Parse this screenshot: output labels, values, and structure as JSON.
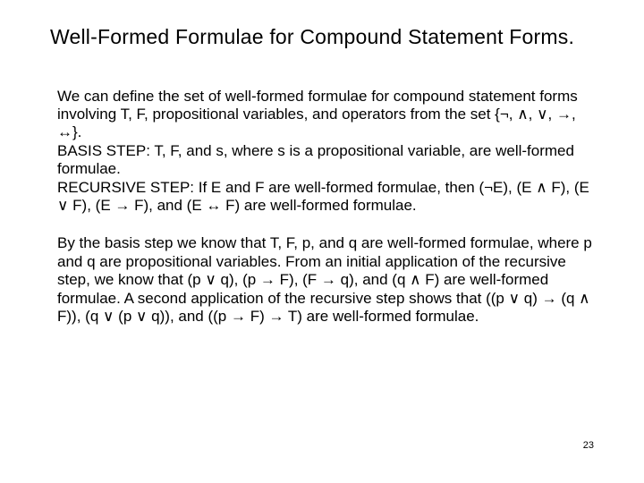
{
  "title": "Well-Formed Formulae for Compound Statement Forms.",
  "para1": "We can define the set of well-formed formulae for compound statement forms involving T, F, propositional variables, and operators from the set {¬, ∧, ∨, →, ↔}.\nBASIS STEP: T, F, and s, where s is a propositional variable, are well-formed formulae.\nRECURSIVE STEP: If E and F are well-formed formulae, then (¬E), (E ∧ F), (E ∨ F), (E → F), and (E ↔ F) are well-formed formulae.",
  "para2": "By the basis step we know that T, F, p, and q are well-formed formulae, where p and q are propositional variables. From an initial application of the recursive step, we know that (p ∨ q), (p → F), (F → q), and (q ∧ F) are well-formed formulae. A second application of the recursive step shows that ((p ∨ q) → (q ∧ F)), (q ∨ (p ∨ q)), and ((p → F) → T) are well-formed formulae.",
  "pageNumber": "23"
}
